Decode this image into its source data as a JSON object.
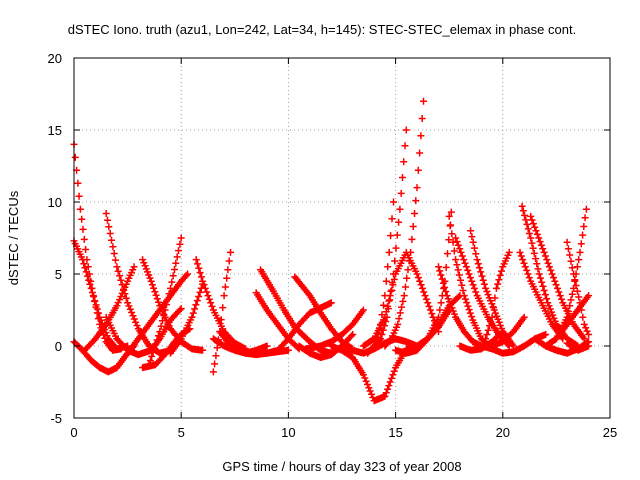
{
  "chart_data": {
    "type": "scatter",
    "title": "dSTEC Iono. truth (azu1, Lon=242, Lat=34, h=145): STEC-STEC_elemax in phase cont.",
    "xlabel": "GPS time / hours of day 323 of year 2008",
    "ylabel": "dSTEC  / TECUs",
    "xlim": [
      0,
      25
    ],
    "ylim": [
      -5,
      20
    ],
    "xticks": [
      0,
      5,
      10,
      15,
      20,
      25
    ],
    "yticks": [
      -5,
      0,
      5,
      10,
      15,
      20
    ],
    "grid": true,
    "marker": "+",
    "color": "#ff0000",
    "series": [
      {
        "x": [
          0.0,
          0.3,
          0.6,
          0.9,
          1.2,
          1.5,
          1.8,
          2.2
        ],
        "y": [
          14.0,
          9.5,
          6.0,
          3.5,
          1.5,
          0.3,
          -0.3,
          -0.2
        ]
      },
      {
        "x": [
          0.0,
          0.4,
          0.8,
          1.2,
          1.6,
          2.0,
          2.5
        ],
        "y": [
          7.3,
          6.0,
          4.0,
          2.0,
          0.5,
          -0.2,
          0.0
        ]
      },
      {
        "x": [
          0.0,
          0.4,
          0.8,
          1.2,
          1.6,
          2.0,
          2.5,
          2.8
        ],
        "y": [
          0.3,
          -0.3,
          -1.0,
          -1.5,
          -1.8,
          -1.5,
          -0.5,
          0.0
        ]
      },
      {
        "x": [
          0.5,
          1.0,
          1.5,
          2.0,
          2.5,
          2.8
        ],
        "y": [
          -0.3,
          0.5,
          1.5,
          2.8,
          4.5,
          5.5
        ]
      },
      {
        "x": [
          1.5,
          2.0,
          2.5,
          3.0,
          3.5,
          4.0,
          4.5
        ],
        "y": [
          9.2,
          5.5,
          3.0,
          1.2,
          0.0,
          -0.5,
          -0.3
        ]
      },
      {
        "x": [
          1.5,
          2.0,
          2.5,
          3.0,
          3.6,
          4.0,
          4.5,
          5.0
        ],
        "y": [
          2.0,
          0.5,
          -0.3,
          -0.6,
          -0.3,
          0.5,
          1.8,
          2.6
        ]
      },
      {
        "x": [
          2.0,
          2.5,
          3.0,
          3.5,
          4.0,
          4.5,
          5.0,
          5.3
        ],
        "y": [
          -1.5,
          -0.5,
          0.5,
          1.5,
          2.5,
          3.5,
          4.5,
          5.0
        ]
      },
      {
        "x": [
          3.2,
          3.6,
          4.0,
          4.5,
          5.0,
          5.5,
          6.0
        ],
        "y": [
          6.0,
          4.5,
          2.8,
          1.2,
          0.3,
          -0.2,
          -0.3
        ]
      },
      {
        "x": [
          3.2,
          3.8,
          4.3,
          4.7,
          5.0,
          5.4
        ],
        "y": [
          -1.5,
          -1.3,
          -0.5,
          0.3,
          0.8,
          1.2
        ]
      },
      {
        "x": [
          3.5,
          4.0,
          4.5,
          5.0
        ],
        "y": [
          -1.3,
          1.0,
          4.0,
          7.5
        ]
      },
      {
        "x": [
          4.5,
          5.0,
          5.5,
          6.0
        ],
        "y": [
          -0.5,
          0.5,
          2.0,
          4.3
        ]
      },
      {
        "x": [
          5.7,
          6.0,
          6.5,
          7.0,
          7.5,
          8.0
        ],
        "y": [
          6.0,
          4.5,
          2.5,
          1.0,
          0.2,
          -0.2
        ]
      },
      {
        "x": [
          6.5,
          7.0,
          7.5,
          8.0,
          8.5,
          9.0,
          10.0
        ],
        "y": [
          0.5,
          0.0,
          -0.3,
          -0.5,
          -0.6,
          -0.5,
          -0.3
        ]
      },
      {
        "x": [
          6.5,
          6.8,
          7.0,
          7.3
        ],
        "y": [
          -1.8,
          1.0,
          3.5,
          6.5
        ]
      },
      {
        "x": [
          6.8,
          7.3,
          8.0,
          8.5,
          9.0
        ],
        "y": [
          1.0,
          0.0,
          -0.5,
          -0.3,
          0.0
        ]
      },
      {
        "x": [
          8.5,
          9.0,
          9.5,
          10.0,
          10.5
        ],
        "y": [
          3.7,
          2.5,
          1.5,
          0.5,
          -0.2
        ]
      },
      {
        "x": [
          8.7,
          9.3,
          9.8,
          10.3,
          11.0,
          11.5,
          12.0
        ],
        "y": [
          5.3,
          3.8,
          2.5,
          1.3,
          0.3,
          -0.3,
          -0.5
        ]
      },
      {
        "x": [
          9.0,
          9.5,
          10.0,
          10.5,
          11.0,
          12.0
        ],
        "y": [
          -0.5,
          -0.3,
          0.5,
          1.5,
          2.3,
          3.0
        ]
      },
      {
        "x": [
          10.3,
          11.0,
          11.5,
          12.0,
          12.5,
          13.0
        ],
        "y": [
          4.8,
          3.5,
          2.3,
          1.2,
          0.3,
          -0.2
        ]
      },
      {
        "x": [
          10.5,
          11.0,
          11.5,
          12.0,
          12.5,
          13.0
        ],
        "y": [
          0.0,
          -0.5,
          -0.8,
          -0.6,
          0.0,
          0.8
        ]
      },
      {
        "x": [
          10.8,
          11.5,
          12.0,
          12.5,
          13.0,
          13.5
        ],
        "y": [
          -0.2,
          0.0,
          0.3,
          0.8,
          1.5,
          2.5
        ]
      },
      {
        "x": [
          12.0,
          12.5,
          13.0,
          13.5,
          14.0,
          14.5,
          15.0,
          15.5,
          16.0
        ],
        "y": [
          0.0,
          -0.3,
          -0.8,
          -2.0,
          -3.8,
          -3.5,
          -1.5,
          -0.2,
          0.0
        ]
      },
      {
        "x": [
          12.5,
          13.0,
          13.5,
          14.0,
          14.5,
          15.0,
          15.5,
          16.0
        ],
        "y": [
          0.0,
          -0.3,
          -0.5,
          -0.2,
          0.2,
          0.5,
          0.3,
          0.0
        ]
      },
      {
        "x": [
          13.5,
          14.0,
          14.5,
          15.0,
          15.5,
          16.0,
          16.5,
          17.0
        ],
        "y": [
          0.0,
          0.5,
          2.0,
          5.0,
          6.5,
          5.0,
          3.0,
          1.0
        ]
      },
      {
        "x": [
          13.7,
          14.0,
          14.3,
          14.5,
          14.7,
          14.9
        ],
        "y": [
          -0.5,
          0.0,
          1.5,
          3.5,
          6.5,
          10.0
        ]
      },
      {
        "x": [
          14.0,
          14.3,
          14.6,
          14.9,
          15.2,
          15.5
        ],
        "y": [
          0.0,
          0.5,
          2.0,
          5.0,
          9.5,
          15.0
        ]
      },
      {
        "x": [
          14.5,
          14.8,
          15.1,
          15.4,
          15.7,
          16.0,
          16.3
        ],
        "y": [
          0.0,
          0.5,
          1.5,
          3.5,
          6.5,
          11.0,
          17.0
        ]
      },
      {
        "x": [
          15.0,
          15.5,
          16.0,
          16.5,
          17.0,
          17.5,
          18.0
        ],
        "y": [
          -0.3,
          -0.5,
          -0.3,
          0.5,
          1.5,
          2.8,
          3.5
        ]
      },
      {
        "x": [
          15.5,
          16.0,
          16.5,
          17.0,
          17.5
        ],
        "y": [
          -0.2,
          0.0,
          0.5,
          1.3,
          2.5
        ]
      },
      {
        "x": [
          16.0,
          16.5,
          17.0,
          17.3,
          17.6
        ],
        "y": [
          0.0,
          0.5,
          2.0,
          4.5,
          9.3
        ]
      },
      {
        "x": [
          17.0,
          17.4,
          17.8,
          18.2,
          18.6,
          19.0
        ],
        "y": [
          5.5,
          3.5,
          2.0,
          1.0,
          0.3,
          0.0
        ]
      },
      {
        "x": [
          17.5,
          17.8,
          18.2,
          18.6,
          19.0,
          19.5
        ],
        "y": [
          9.0,
          6.0,
          3.5,
          1.8,
          0.5,
          -0.2
        ]
      },
      {
        "x": [
          17.8,
          18.3,
          18.8,
          19.3,
          19.8,
          20.3
        ],
        "y": [
          7.5,
          5.5,
          3.5,
          2.0,
          0.8,
          0.0
        ]
      },
      {
        "x": [
          18.0,
          18.5,
          19.0,
          19.5,
          20.0
        ],
        "y": [
          0.0,
          -0.3,
          -0.2,
          0.3,
          1.0
        ]
      },
      {
        "x": [
          18.5,
          18.8,
          19.2,
          19.6,
          20.0,
          20.5
        ],
        "y": [
          8.0,
          6.0,
          4.0,
          2.5,
          1.0,
          0.0
        ]
      },
      {
        "x": [
          19.0,
          19.5,
          20.0,
          20.5,
          21.0,
          21.5,
          22.0
        ],
        "y": [
          0.0,
          -0.2,
          -0.5,
          -0.4,
          0.0,
          0.5,
          0.8
        ]
      },
      {
        "x": [
          19.2,
          19.5,
          19.7,
          20.0,
          20.3
        ],
        "y": [
          0.5,
          2.0,
          4.0,
          5.5,
          6.5
        ]
      },
      {
        "x": [
          19.5,
          20.0,
          20.5,
          21.0
        ],
        "y": [
          0.0,
          0.3,
          1.0,
          2.0
        ]
      },
      {
        "x": [
          20.9,
          21.3,
          21.7,
          22.1,
          22.5,
          23.0,
          23.5
        ],
        "y": [
          9.7,
          7.5,
          5.0,
          3.0,
          1.5,
          0.5,
          0.0
        ]
      },
      {
        "x": [
          21.3,
          21.8,
          22.3,
          22.8,
          23.3,
          23.8
        ],
        "y": [
          9.0,
          7.0,
          5.0,
          3.0,
          1.5,
          0.5
        ]
      },
      {
        "x": [
          20.8,
          21.3,
          21.8,
          22.3,
          22.8
        ],
        "y": [
          6.5,
          4.5,
          3.0,
          1.5,
          0.5
        ]
      },
      {
        "x": [
          21.5,
          22.0,
          22.5,
          23.0,
          23.5,
          24.0
        ],
        "y": [
          0.5,
          0.0,
          -0.3,
          -0.5,
          -0.2,
          0.3
        ]
      },
      {
        "x": [
          22.5,
          23.0,
          23.3,
          23.6,
          23.9
        ],
        "y": [
          0.5,
          2.0,
          4.0,
          6.5,
          9.5
        ]
      },
      {
        "x": [
          22.0,
          22.5,
          23.0,
          23.5,
          24.0
        ],
        "y": [
          0.0,
          0.5,
          1.5,
          2.5,
          3.5
        ]
      },
      {
        "x": [
          23.0,
          23.3,
          23.6,
          23.8,
          24.0
        ],
        "y": [
          7.2,
          5.0,
          3.0,
          1.5,
          0.8
        ]
      },
      {
        "x": [
          23.0,
          23.5,
          24.0
        ],
        "y": [
          0.2,
          -0.3,
          0.0
        ]
      }
    ]
  }
}
